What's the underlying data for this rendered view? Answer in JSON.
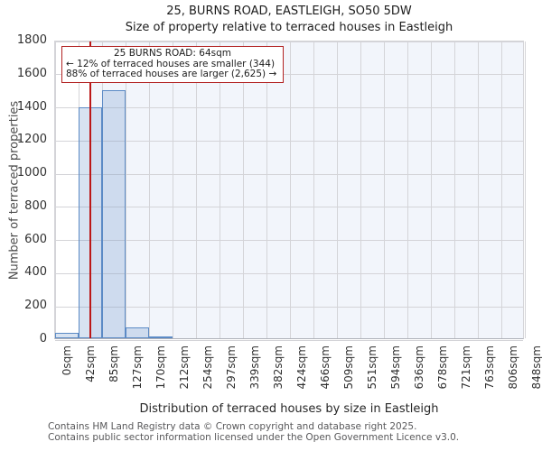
{
  "title": "25, BURNS ROAD, EASTLEIGH, SO50 5DW",
  "subtitle": "Size of property relative to terraced houses in Eastleigh",
  "annotation": {
    "line1": "25 BURNS ROAD: 64sqm",
    "line2": "← 12% of terraced houses are smaller (344)",
    "line3": "88% of terraced houses are larger (2,625) →"
  },
  "footer": {
    "line1": "Contains HM Land Registry data © Crown copyright and database right 2025.",
    "line2": "Contains public sector information licensed under the Open Government Licence v3.0."
  },
  "chart_data": {
    "type": "bar",
    "title": "25, BURNS ROAD, EASTLEIGH, SO50 5DW",
    "subtitle": "Size of property relative to terraced houses in Eastleigh",
    "xlabel": "Distribution of terraced houses by size in Eastleigh",
    "ylabel": "Number of terraced properties",
    "ylim": [
      0,
      1800
    ],
    "y_ticks": [
      0,
      200,
      400,
      600,
      800,
      1000,
      1200,
      1400,
      1600,
      1800
    ],
    "x_max_sqm": 848,
    "x_tick_labels": [
      "0sqm",
      "42sqm",
      "85sqm",
      "127sqm",
      "170sqm",
      "212sqm",
      "254sqm",
      "297sqm",
      "339sqm",
      "382sqm",
      "424sqm",
      "466sqm",
      "509sqm",
      "551sqm",
      "594sqm",
      "636sqm",
      "678sqm",
      "721sqm",
      "763sqm",
      "806sqm",
      "848sqm"
    ],
    "values": [
      33,
      1390,
      1495,
      65,
      12,
      0,
      0,
      0,
      0,
      0,
      0,
      0,
      0,
      0,
      0,
      0,
      0,
      0,
      0,
      0
    ],
    "marker": {
      "label": "25 BURNS ROAD",
      "value_sqm": 64
    },
    "grid": true,
    "legend": false,
    "colors": {
      "bar_fill": "rgba(91,138,197,0.24)",
      "bar_edge": "#5b8ac5",
      "marker_line": "#bb1717",
      "annotation_border": "#b22222",
      "shaded_region": "#f2f5fb",
      "gridline": "#d4d4d8"
    }
  }
}
